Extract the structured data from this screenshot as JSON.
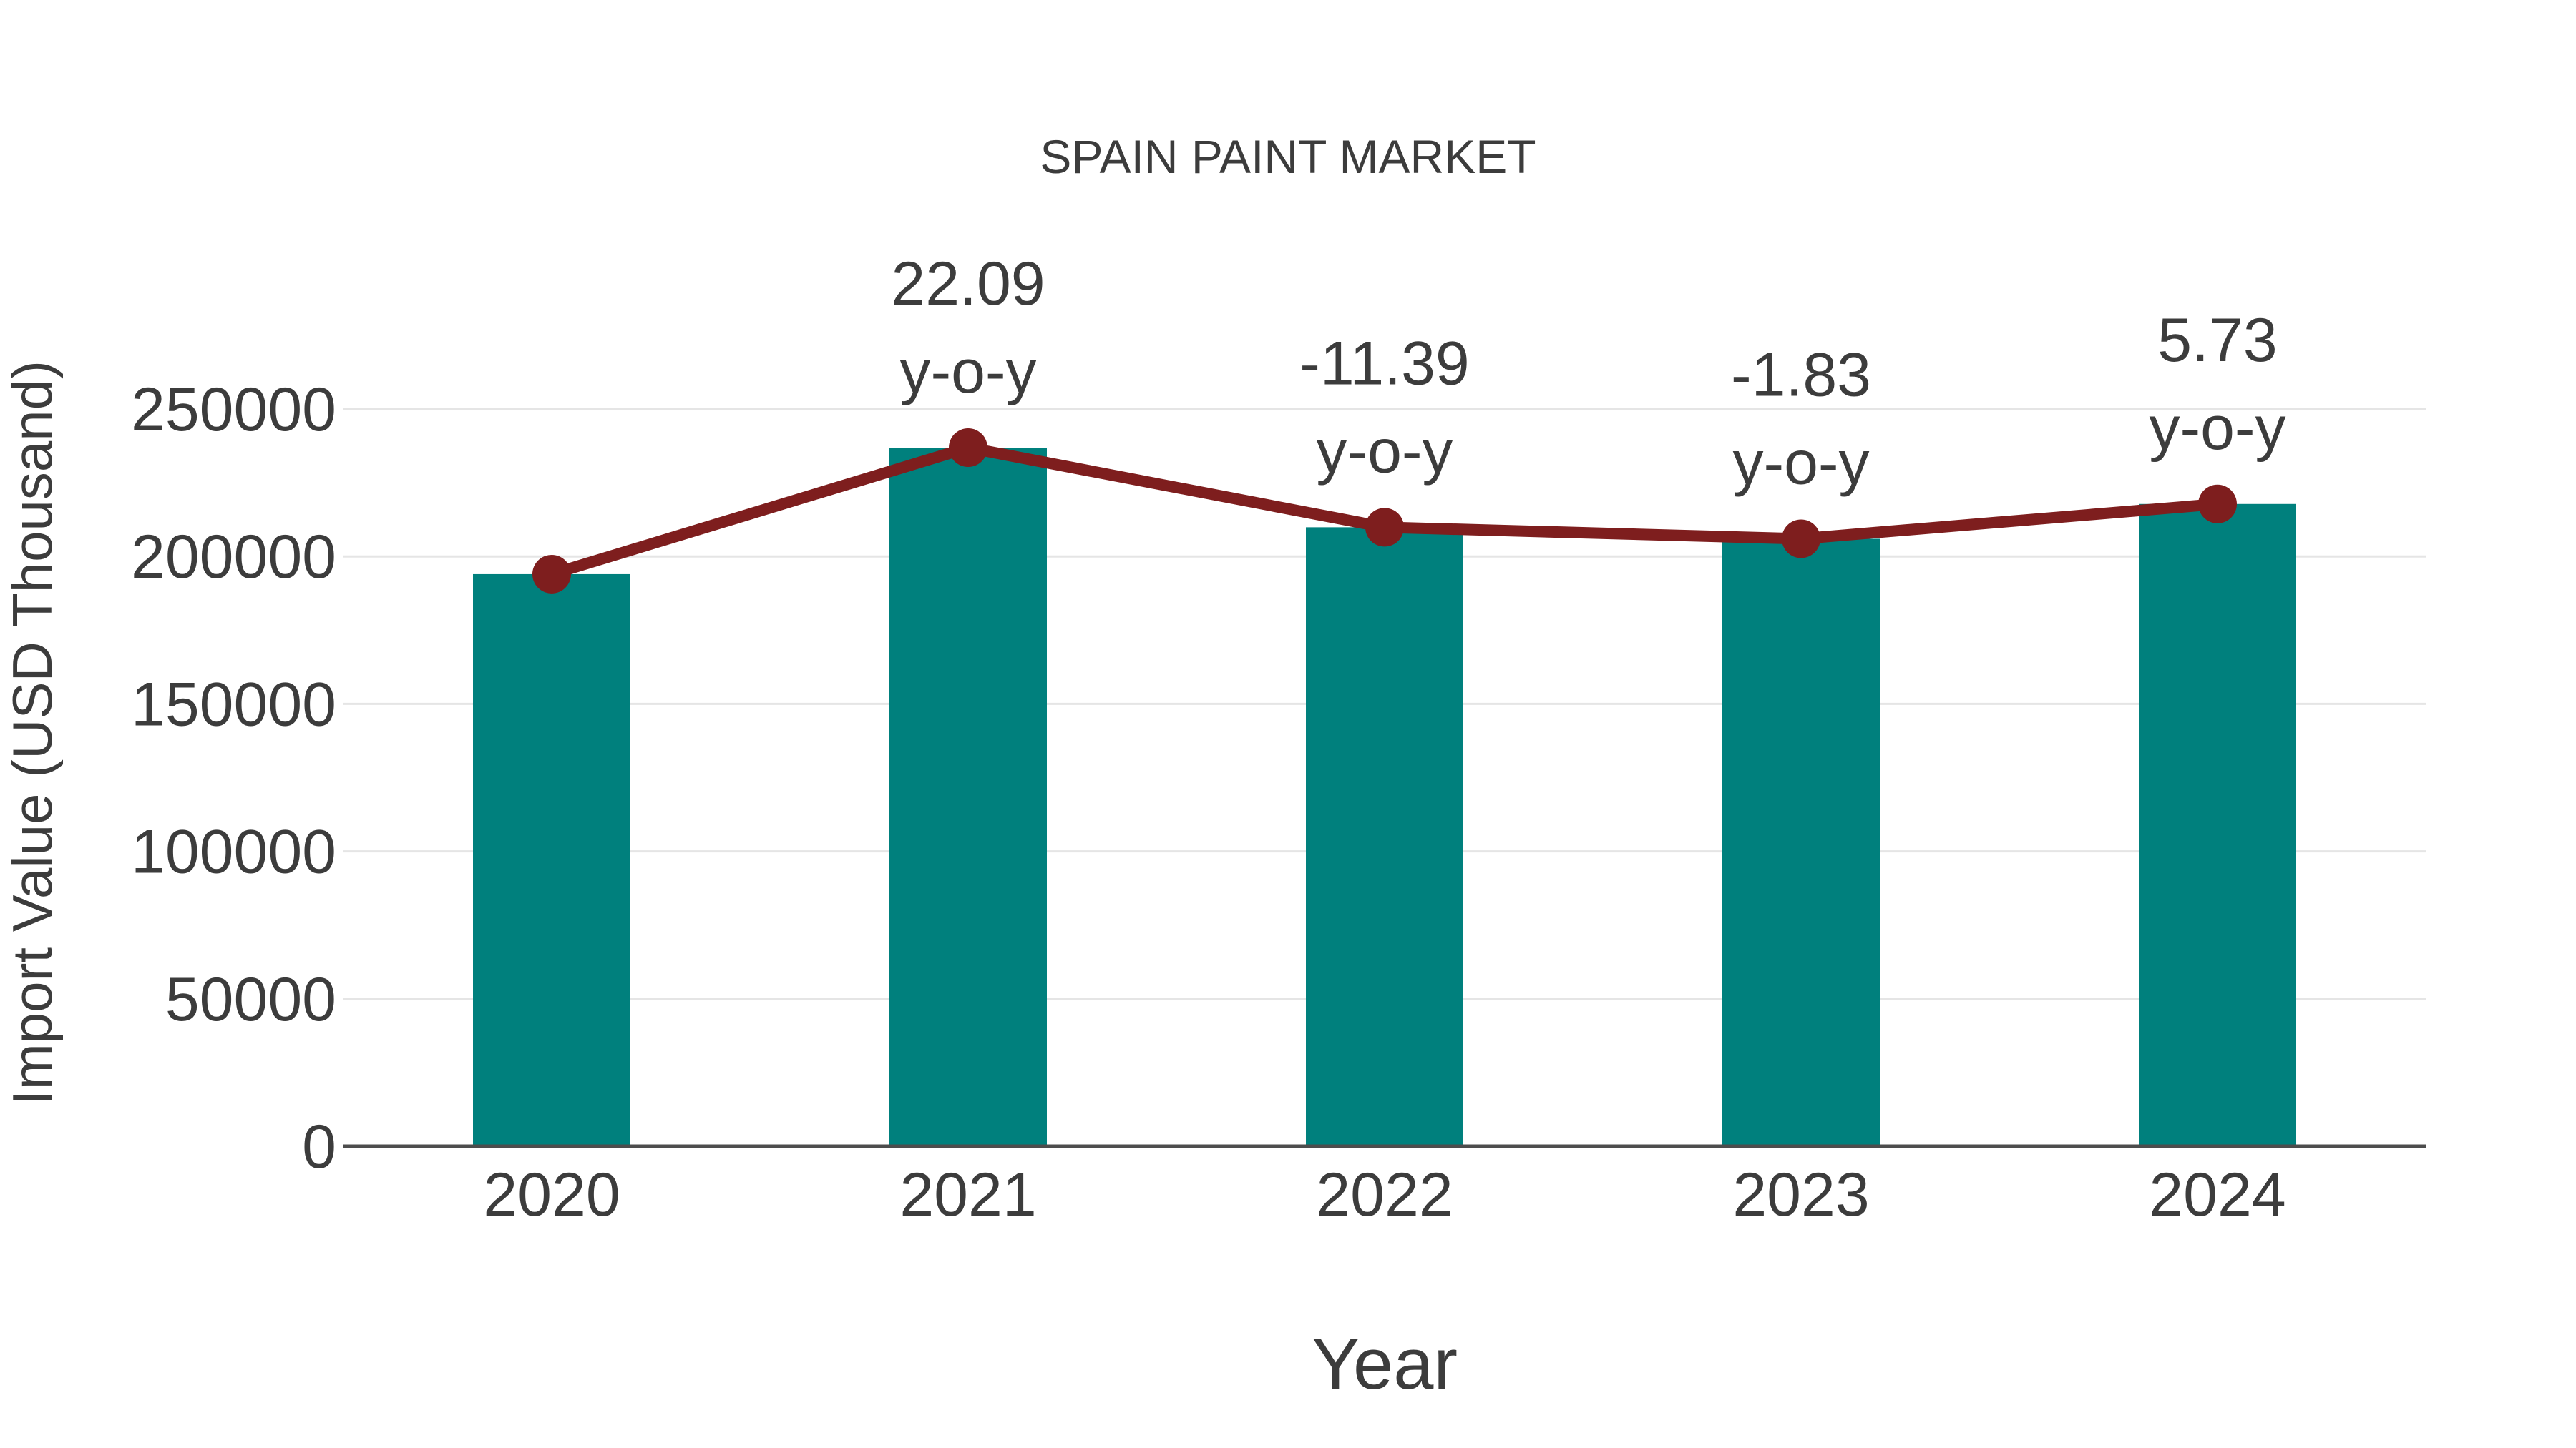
{
  "title": "SPAIN PAINT MARKET",
  "colors": {
    "bar": "#00807D",
    "line": "#7E1E1E",
    "marker": "#7E1E1E",
    "text": "#3C3C3C",
    "grid": "#E5E5E5",
    "axis": "#4D4D4D",
    "background": "#FFFFFF"
  },
  "chart_data": {
    "type": "bar",
    "subtype": "bar-with-line-overlay",
    "title": "SPAIN PAINT MARKET",
    "xlabel": "Year",
    "ylabel": "Import Value (USD Thousand)",
    "categories": [
      "2020",
      "2021",
      "2022",
      "2023",
      "2024"
    ],
    "series": [
      {
        "name": "Import Value (USD Thousand)",
        "type": "bar",
        "color": "#00807D",
        "values": [
          194000,
          236900,
          209900,
          206000,
          217800
        ]
      },
      {
        "name": "Import Value trend (y-o-y markers)",
        "type": "line",
        "color": "#7E1E1E",
        "values": [
          194000,
          236900,
          209900,
          206000,
          217800
        ]
      }
    ],
    "yoy_labels": [
      {
        "category": "2021",
        "value": "22.09",
        "suffix": "y-o-y"
      },
      {
        "category": "2022",
        "value": "-11.39",
        "suffix": "y-o-y"
      },
      {
        "category": "2023",
        "value": "-1.83",
        "suffix": "y-o-y"
      },
      {
        "category": "2024",
        "value": "5.73",
        "suffix": "y-o-y"
      }
    ],
    "ylim": [
      0,
      250000
    ],
    "yticks": [
      0,
      50000,
      100000,
      150000,
      200000,
      250000
    ],
    "grid": true,
    "legend_position": "none"
  }
}
